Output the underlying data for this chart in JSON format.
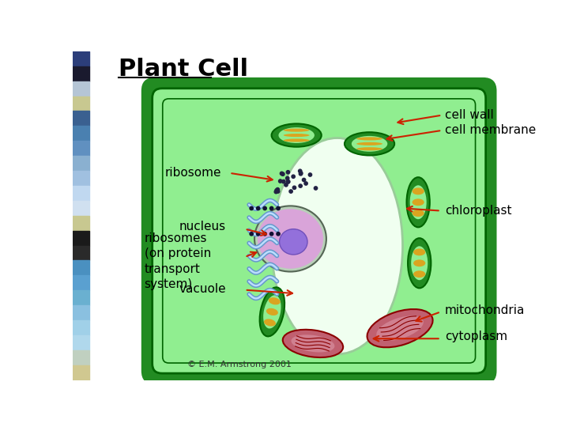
{
  "title": "Plant Cell",
  "bg_color": "#ffffff",
  "cell_wall_color": "#228B22",
  "cell_interior_color": "#90EE90",
  "cell_wall_stroke": "#006400",
  "arrow_color": "#cc2200",
  "label_color": "#000000",
  "sidebar_colors": [
    "#2c3e7a",
    "#1a1a2e",
    "#b5c5d5",
    "#c8c890",
    "#3a6090",
    "#4a80b0",
    "#6090c0",
    "#8ab0d0",
    "#a0c0e0",
    "#c0d8f0",
    "#d0e0f0",
    "#c8c890",
    "#1a1a1a",
    "#2a2a2a",
    "#4a90c0",
    "#5aa0d0",
    "#6ab0d0",
    "#8ac0e0",
    "#a0d0e8",
    "#b0d8ec",
    "#c0d0c0",
    "#d0c890"
  ],
  "labels": {
    "cell_wall": "cell wall",
    "cell_membrane": "cell membrane",
    "ribosome": "ribosome",
    "chloroplast": "chloroplast",
    "nucleus": "nucleus",
    "ribosomes_on": "ribosomes\n(on protein\ntransport\nsystem)",
    "vacuole": "vacuole",
    "mitochondria": "mitochondria",
    "cytoplasm": "cytoplasm",
    "copyright": "© E.M. Armstrong 2001"
  }
}
